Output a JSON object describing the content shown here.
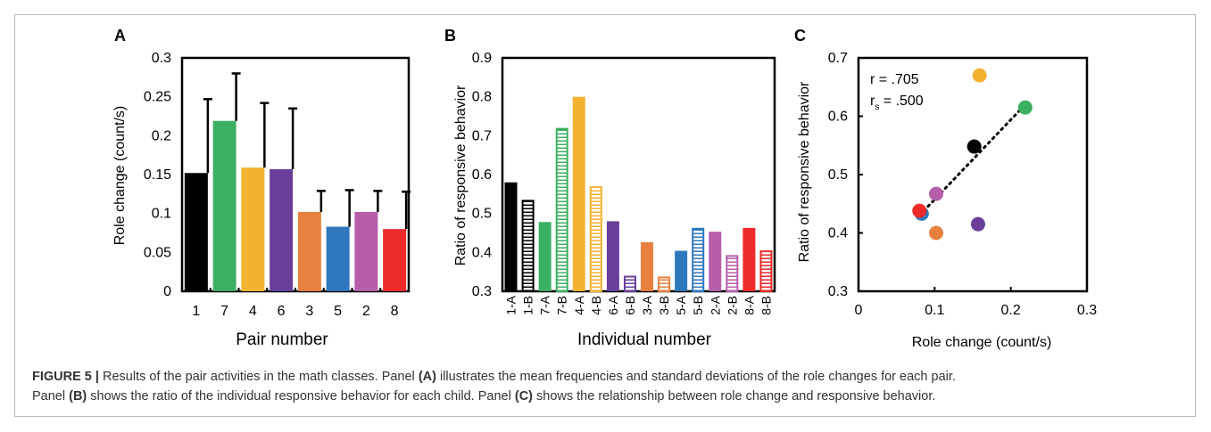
{
  "caption": {
    "figure_label": "FIGURE 5 |",
    "line1_a": " Results of the pair activities in the math classes. Panel ",
    "panel_a_ref": "(A)",
    "line1_b": " illustrates the mean frequencies and standard deviations of the role changes for each pair.",
    "line2_a": "Panel ",
    "panel_b_ref": "(B)",
    "line2_b": " shows the ratio of the individual responsive behavior for each child. Panel ",
    "panel_c_ref": "(C)",
    "line2_c": " shows the relationship between role change and responsive behavior."
  },
  "chart_data": [
    {
      "panel": "A",
      "type": "bar",
      "xlabel": "Pair number",
      "ylabel": "Role change (count/s)",
      "ylim": [
        0,
        0.3
      ],
      "yticks": [
        "0",
        "0.05",
        "0.1",
        "0.15",
        "0.2",
        "0.25",
        "0.3"
      ],
      "categories": [
        "1",
        "7",
        "4",
        "6",
        "3",
        "5",
        "2",
        "8"
      ],
      "values": [
        0.152,
        0.219,
        0.159,
        0.157,
        0.102,
        0.083,
        0.102,
        0.08
      ],
      "errors": [
        0.095,
        0.061,
        0.083,
        0.078,
        0.027,
        0.047,
        0.027,
        0.048
      ],
      "colors": [
        "#000000",
        "#3cb062",
        "#f4b232",
        "#6a3f9a",
        "#e8803f",
        "#2f77bd",
        "#b55eaa",
        "#ee2a2a"
      ],
      "error_bars": true
    },
    {
      "panel": "B",
      "type": "bar",
      "xlabel": "Individual number",
      "ylabel": "Ratio of responsive behavior",
      "ylim": [
        0.3,
        0.9
      ],
      "yticks": [
        "0.3",
        "0.4",
        "0.5",
        "0.6",
        "0.7",
        "0.8",
        "0.9"
      ],
      "categories": [
        "1-A",
        "1-B",
        "7-A",
        "7-B",
        "4-A",
        "4-B",
        "6-A",
        "6-B",
        "3-A",
        "3-B",
        "5-A",
        "5-B",
        "2-A",
        "2-B",
        "8-A",
        "8-B"
      ],
      "values": [
        0.58,
        0.535,
        0.478,
        0.72,
        0.8,
        0.57,
        0.48,
        0.34,
        0.426,
        0.338,
        0.404,
        0.463,
        0.453,
        0.393,
        0.463,
        0.405
      ],
      "fill": [
        "solid",
        "striped",
        "solid",
        "striped",
        "solid",
        "striped",
        "solid",
        "striped",
        "solid",
        "striped",
        "solid",
        "striped",
        "solid",
        "striped",
        "solid",
        "striped"
      ],
      "colors": [
        "#000000",
        "#000000",
        "#3cb062",
        "#3cb062",
        "#f4b232",
        "#f4b232",
        "#6a3f9a",
        "#6a3f9a",
        "#e8803f",
        "#e8803f",
        "#2f77bd",
        "#2f77bd",
        "#b55eaa",
        "#b55eaa",
        "#ee2a2a",
        "#ee2a2a"
      ]
    },
    {
      "panel": "C",
      "type": "scatter",
      "xlabel": "Role change (count/s)",
      "ylabel": "Ratio of responsive behavior",
      "xlim": [
        0,
        0.3
      ],
      "ylim": [
        0.3,
        0.7
      ],
      "xticks": [
        "0",
        "0.1",
        "0.2",
        "0.3"
      ],
      "yticks": [
        "0.3",
        "0.4",
        "0.5",
        "0.6",
        "0.7"
      ],
      "points": [
        {
          "x": 0.083,
          "y": 0.433,
          "color": "#2f77bd"
        },
        {
          "x": 0.08,
          "y": 0.438,
          "color": "#ee2a2a"
        },
        {
          "x": 0.102,
          "y": 0.467,
          "color": "#b55eaa"
        },
        {
          "x": 0.102,
          "y": 0.4,
          "color": "#e8803f"
        },
        {
          "x": 0.157,
          "y": 0.415,
          "color": "#6a3f9a"
        },
        {
          "x": 0.159,
          "y": 0.67,
          "color": "#f4b232"
        },
        {
          "x": 0.219,
          "y": 0.615,
          "color": "#3cb062"
        },
        {
          "x": 0.152,
          "y": 0.548,
          "color": "#000000"
        }
      ],
      "trendline": {
        "x1": 0.08,
        "y1": 0.43,
        "x2": 0.219,
        "y2": 0.62,
        "style": "dotted"
      },
      "annotation_r": "r = .705",
      "annotation_rs_prefix": "r",
      "annotation_rs_sub": "s",
      "annotation_rs_value": " = .500"
    }
  ],
  "panel_labels": [
    "A",
    "B",
    "C"
  ]
}
